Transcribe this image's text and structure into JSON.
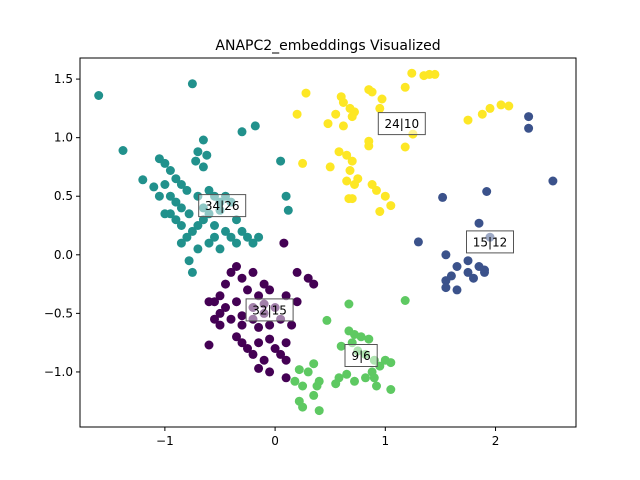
{
  "chart_data": {
    "type": "scatter",
    "title": "ANAPC2_embeddings Visualized",
    "xlabel": "",
    "ylabel": "",
    "xlim": [
      -1.77,
      2.73
    ],
    "ylim": [
      -1.47,
      1.68
    ],
    "xticks": [
      -1,
      0,
      1,
      2
    ],
    "yticks": [
      -1.0,
      -0.5,
      0.0,
      0.5,
      1.0,
      1.5
    ],
    "grid": false,
    "legend": "none",
    "series": [
      {
        "color": "#440154",
        "points": [
          [
            -0.35,
            -0.1
          ],
          [
            -0.4,
            -0.15
          ],
          [
            -0.3,
            -0.2
          ],
          [
            -0.2,
            -0.15
          ],
          [
            -0.1,
            -0.25
          ],
          [
            -0.05,
            -0.3
          ],
          [
            -0.15,
            -0.35
          ],
          [
            -0.25,
            -0.3
          ],
          [
            -0.5,
            -0.35
          ],
          [
            -0.55,
            -0.4
          ],
          [
            -0.6,
            -0.4
          ],
          [
            -0.45,
            -0.45
          ],
          [
            -0.35,
            -0.4
          ],
          [
            -0.2,
            -0.45
          ],
          [
            -0.1,
            -0.5
          ],
          [
            0.0,
            -0.45
          ],
          [
            -0.55,
            -0.55
          ],
          [
            -0.5,
            -0.6
          ],
          [
            -0.4,
            -0.55
          ],
          [
            -0.3,
            -0.6
          ],
          [
            -0.2,
            -0.55
          ],
          [
            -0.15,
            -0.62
          ],
          [
            -0.05,
            -0.6
          ],
          [
            0.05,
            -0.55
          ],
          [
            -0.35,
            -0.7
          ],
          [
            -0.3,
            -0.75
          ],
          [
            -0.25,
            -0.8
          ],
          [
            -0.15,
            -0.75
          ],
          [
            -0.05,
            -0.72
          ],
          [
            0.0,
            -0.8
          ],
          [
            0.1,
            -0.75
          ],
          [
            -0.2,
            -0.85
          ],
          [
            -0.1,
            -0.9
          ],
          [
            0.05,
            -0.85
          ],
          [
            0.1,
            -0.9
          ],
          [
            -0.6,
            -0.77
          ],
          [
            -0.15,
            -0.97
          ],
          [
            -0.05,
            -1.0
          ],
          [
            -0.5,
            -0.5
          ],
          [
            -0.45,
            -0.25
          ],
          [
            0.2,
            -0.15
          ],
          [
            0.3,
            -0.2
          ],
          [
            0.35,
            -0.25
          ],
          [
            0.1,
            -0.35
          ],
          [
            0.2,
            -0.4
          ],
          [
            0.15,
            -0.6
          ],
          [
            0.1,
            -1.05
          ],
          [
            -0.3,
            -0.52
          ],
          [
            -0.1,
            -0.42
          ],
          [
            0.08,
            0.1
          ]
        ]
      },
      {
        "color": "#21918c",
        "points": [
          [
            -1.6,
            1.36
          ],
          [
            -0.75,
            1.46
          ],
          [
            -1.38,
            0.89
          ],
          [
            -0.3,
            1.05
          ],
          [
            -0.18,
            1.1
          ],
          [
            -0.65,
            0.98
          ],
          [
            -0.7,
            0.88
          ],
          [
            -0.62,
            0.85
          ],
          [
            -0.72,
            0.8
          ],
          [
            -0.65,
            0.75
          ],
          [
            -1.2,
            0.64
          ],
          [
            -1.05,
            0.82
          ],
          [
            -1.0,
            0.78
          ],
          [
            -0.95,
            0.72
          ],
          [
            -0.9,
            0.65
          ],
          [
            -0.85,
            0.6
          ],
          [
            -0.8,
            0.55
          ],
          [
            -1.0,
            0.6
          ],
          [
            -1.1,
            0.58
          ],
          [
            -1.05,
            0.5
          ],
          [
            -0.95,
            0.5
          ],
          [
            -0.9,
            0.45
          ],
          [
            -0.85,
            0.4
          ],
          [
            -0.78,
            0.35
          ],
          [
            -0.7,
            0.5
          ],
          [
            -0.6,
            0.55
          ],
          [
            -0.55,
            0.5
          ],
          [
            -0.5,
            0.45
          ],
          [
            -0.45,
            0.5
          ],
          [
            -0.4,
            0.45
          ],
          [
            -0.5,
            0.38
          ],
          [
            -0.6,
            0.35
          ],
          [
            -0.65,
            0.3
          ],
          [
            -0.7,
            0.25
          ],
          [
            -0.75,
            0.2
          ],
          [
            -0.8,
            0.15
          ],
          [
            -0.85,
            0.25
          ],
          [
            -0.9,
            0.3
          ],
          [
            -0.95,
            0.35
          ],
          [
            -1.0,
            0.35
          ],
          [
            -0.55,
            0.25
          ],
          [
            -0.45,
            0.2
          ],
          [
            -0.4,
            0.15
          ],
          [
            -0.35,
            0.1
          ],
          [
            -0.3,
            0.2
          ],
          [
            -0.25,
            0.15
          ],
          [
            -0.2,
            0.1
          ],
          [
            -0.15,
            0.15
          ],
          [
            -0.55,
            0.15
          ],
          [
            -0.6,
            0.1
          ],
          [
            -0.7,
            0.05
          ],
          [
            -0.78,
            -0.05
          ],
          [
            -0.75,
            -0.15
          ],
          [
            -0.5,
            0.05
          ],
          [
            -0.35,
            0.3
          ],
          [
            0.05,
            0.8
          ],
          [
            0.1,
            0.5
          ],
          [
            0.12,
            0.38
          ],
          [
            -0.85,
            0.1
          ],
          [
            -0.65,
            0.4
          ]
        ]
      },
      {
        "color": "#3b528b",
        "points": [
          [
            2.3,
            1.18
          ],
          [
            2.3,
            1.08
          ],
          [
            2.52,
            0.63
          ],
          [
            1.92,
            0.54
          ],
          [
            1.52,
            0.49
          ],
          [
            1.85,
            0.27
          ],
          [
            1.95,
            0.15
          ],
          [
            1.3,
            0.11
          ],
          [
            1.55,
            0.0
          ],
          [
            1.75,
            -0.05
          ],
          [
            1.85,
            -0.1
          ],
          [
            1.9,
            -0.15
          ],
          [
            1.75,
            -0.15
          ],
          [
            1.65,
            -0.1
          ],
          [
            1.6,
            -0.18
          ],
          [
            1.55,
            -0.22
          ],
          [
            1.55,
            -0.28
          ],
          [
            1.65,
            -0.3
          ],
          [
            1.8,
            -0.2
          ],
          [
            1.9,
            -0.13
          ]
        ]
      },
      {
        "color": "#5ec962",
        "points": [
          [
            1.18,
            -0.39
          ],
          [
            0.67,
            -0.42
          ],
          [
            0.47,
            -0.56
          ],
          [
            0.67,
            -0.65
          ],
          [
            0.72,
            -0.68
          ],
          [
            0.78,
            -0.7
          ],
          [
            0.85,
            -0.72
          ],
          [
            0.7,
            -0.75
          ],
          [
            0.6,
            -0.78
          ],
          [
            0.75,
            -0.82
          ],
          [
            0.82,
            -0.85
          ],
          [
            0.9,
            -0.9
          ],
          [
            0.95,
            -0.95
          ],
          [
            1.0,
            -0.9
          ],
          [
            1.05,
            -0.92
          ],
          [
            0.88,
            -1.0
          ],
          [
            0.82,
            -1.05
          ],
          [
            0.72,
            -1.08
          ],
          [
            0.65,
            -1.02
          ],
          [
            0.58,
            -1.05
          ],
          [
            0.55,
            -1.1
          ],
          [
            0.35,
            -0.93
          ],
          [
            0.3,
            -1.0
          ],
          [
            0.22,
            -0.98
          ],
          [
            0.18,
            -1.08
          ],
          [
            0.25,
            -1.12
          ],
          [
            0.38,
            -1.12
          ],
          [
            0.4,
            -1.08
          ],
          [
            0.92,
            -1.12
          ],
          [
            1.05,
            -1.15
          ],
          [
            0.22,
            -1.25
          ],
          [
            0.25,
            -1.3
          ],
          [
            0.4,
            -1.33
          ],
          [
            0.35,
            -1.2
          ],
          [
            0.9,
            -1.05
          ]
        ]
      },
      {
        "color": "#fde725",
        "points": [
          [
            1.24,
            1.55
          ],
          [
            1.35,
            1.53
          ],
          [
            1.4,
            1.54
          ],
          [
            1.45,
            1.54
          ],
          [
            1.18,
            1.43
          ],
          [
            0.97,
            1.33
          ],
          [
            0.85,
            1.41
          ],
          [
            0.88,
            1.39
          ],
          [
            0.28,
            1.38
          ],
          [
            0.6,
            1.35
          ],
          [
            0.62,
            1.3
          ],
          [
            0.68,
            1.25
          ],
          [
            0.72,
            1.22
          ],
          [
            0.55,
            1.2
          ],
          [
            0.62,
            1.1
          ],
          [
            0.48,
            1.12
          ],
          [
            0.7,
            1.18
          ],
          [
            1.25,
            1.03
          ],
          [
            1.95,
            1.25
          ],
          [
            2.05,
            1.28
          ],
          [
            2.12,
            1.27
          ],
          [
            1.88,
            1.2
          ],
          [
            1.75,
            1.15
          ],
          [
            0.95,
            1.25
          ],
          [
            0.85,
            0.97
          ],
          [
            0.2,
            1.2
          ],
          [
            0.58,
            0.88
          ],
          [
            0.65,
            0.85
          ],
          [
            0.7,
            0.8
          ],
          [
            0.5,
            0.75
          ],
          [
            0.25,
            0.78
          ],
          [
            0.68,
            0.72
          ],
          [
            0.75,
            0.65
          ],
          [
            0.65,
            0.63
          ],
          [
            0.72,
            0.6
          ],
          [
            0.88,
            0.6
          ],
          [
            0.92,
            0.55
          ],
          [
            1.0,
            0.5
          ],
          [
            0.95,
            0.37
          ],
          [
            0.67,
            0.48
          ],
          [
            0.7,
            0.48
          ],
          [
            1.05,
            0.42
          ],
          [
            1.18,
            0.92
          ],
          [
            0.85,
            0.93
          ]
        ]
      }
    ],
    "annotations": [
      {
        "text": "34|26",
        "x": -0.48,
        "y": 0.42
      },
      {
        "text": "32|15",
        "x": -0.05,
        "y": -0.47
      },
      {
        "text": "24|10",
        "x": 1.15,
        "y": 1.12
      },
      {
        "text": "15|12",
        "x": 1.95,
        "y": 0.11
      },
      {
        "text": "9|6",
        "x": 0.78,
        "y": -0.86
      }
    ]
  }
}
